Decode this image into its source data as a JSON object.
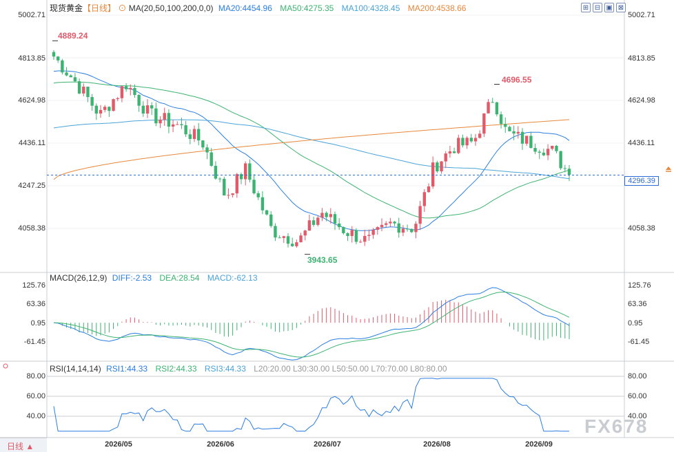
{
  "header": {
    "instrument": "现货黄金",
    "period": "【日线】",
    "ma_label": "MA(20,50,100,200,0,0)",
    "ma20": "MA20:4454.96",
    "ma50": "MA50:4275.35",
    "ma100": "MA100:4328.45",
    "ma200": "MA200:4538.66"
  },
  "price_axis": {
    "ticks": [
      "5002.71",
      "4813.85",
      "4624.98",
      "4436.11",
      "4247.25",
      "4058.38"
    ],
    "current_price": "4296.39"
  },
  "annotations": {
    "high": "4889.24",
    "peak": "4696.55",
    "low": "3943.65"
  },
  "macd": {
    "label": "MACD(26,12,9)",
    "diff": "DIFF:-2.53",
    "dea": "DEA:28.54",
    "macd": "MACD:-62.13",
    "ticks": [
      "125.76",
      "63.36",
      "0.95",
      "-61.45"
    ]
  },
  "rsi": {
    "label": "RSI(14,14,14)",
    "rsi1": "RSI1:44.33",
    "rsi2": "RSI2:44.33",
    "rsi3": "RSI3:44.33",
    "levels": "L20:20.00   L30:30.00   L50:50.00   L70:70.00   L80:80.00",
    "ticks": [
      "80.00",
      "60.00",
      "40.00"
    ]
  },
  "x_axis": {
    "labels": [
      "2026/05",
      "2026/06",
      "2026/07",
      "2026/08",
      "2026/09"
    ]
  },
  "toolbar": {
    "buttons": [
      "⊞",
      "⊟",
      "▣",
      "⊠"
    ]
  },
  "footer": {
    "period_tab": "日线 ▲",
    "watermark": "FX678"
  },
  "colors": {
    "up": "#e05a6a",
    "down": "#3cb371",
    "ma20": "#2a7de1",
    "ma50": "#3cb371",
    "ma100": "#4aa3d8",
    "ma200": "#e8873a",
    "diff": "#2a7de1",
    "dea": "#3cb371"
  },
  "chart_data": {
    "type": "candlestick",
    "price_range": [
      3880,
      5002.71
    ],
    "keypoints": [
      {
        "date": "2026/04/13",
        "close": 4820
      },
      {
        "date": "2026/04/20",
        "close": 4700
      },
      {
        "date": "2026/04/27",
        "close": 4560
      },
      {
        "date": "2026/05/05",
        "close": 4700
      },
      {
        "date": "2026/05/12",
        "close": 4560
      },
      {
        "date": "2026/05/20",
        "close": 4520
      },
      {
        "date": "2026/05/28",
        "close": 4440
      },
      {
        "date": "2026/06/04",
        "close": 4200
      },
      {
        "date": "2026/06/10",
        "close": 4320
      },
      {
        "date": "2026/06/18",
        "close": 4050
      },
      {
        "date": "2026/06/26",
        "close": 4000
      },
      {
        "date": "2026/07/03",
        "close": 4130
      },
      {
        "date": "2026/07/10",
        "close": 4050
      },
      {
        "date": "2026/07/17",
        "close": 4000
      },
      {
        "date": "2026/07/24",
        "close": 4080
      },
      {
        "date": "2026/07/31",
        "close": 4060
      },
      {
        "date": "2026/08/06",
        "close": 4330
      },
      {
        "date": "2026/08/12",
        "close": 4420
      },
      {
        "date": "2026/08/18",
        "close": 4440
      },
      {
        "date": "2026/08/24",
        "close": 4640
      },
      {
        "date": "2026/08/28",
        "close": 4480
      },
      {
        "date": "2026/09/04",
        "close": 4440
      },
      {
        "date": "2026/09/11",
        "close": 4400
      },
      {
        "date": "2026/09/16",
        "close": 4296.39
      }
    ],
    "macd_range": [
      -100,
      135
    ],
    "rsi_range": [
      20,
      85
    ],
    "rsi_levels": [
      80,
      60,
      40
    ]
  }
}
